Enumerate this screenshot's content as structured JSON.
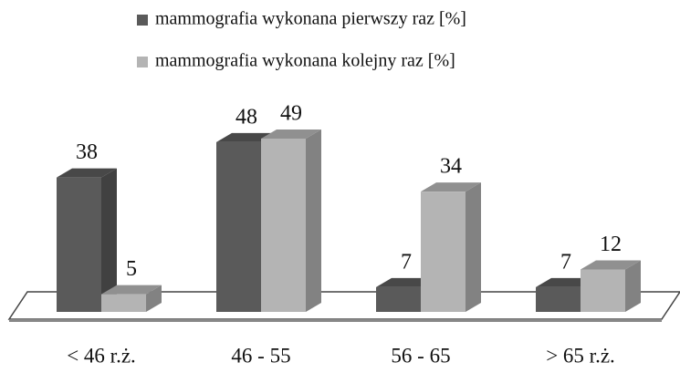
{
  "chart_data": {
    "type": "bar3d",
    "categories": [
      "< 46 r.ż.",
      "46 - 55",
      "56 - 65",
      "> 65 r.ż."
    ],
    "series": [
      {
        "name": "mammografia wykonana pierwszy raz [%]",
        "color": "#5a5a5a",
        "values": [
          38,
          48,
          7,
          7
        ]
      },
      {
        "name": "mammografia wykonana kolejny raz [%]",
        "color": "#b4b4b4",
        "values": [
          5,
          49,
          34,
          12
        ]
      }
    ],
    "legend": "top"
  }
}
